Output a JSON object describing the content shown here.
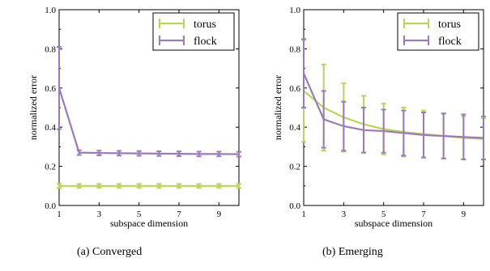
{
  "chart_data": [
    {
      "type": "line",
      "xlabel": "subspace dimension",
      "ylabel": "normalized error",
      "xlim": [
        1,
        10
      ],
      "ylim": [
        0.0,
        1.0
      ],
      "xticks": [
        "1",
        "3",
        "5",
        "7",
        "9"
      ],
      "yticks": [
        "0.0",
        "0.2",
        "0.4",
        "0.6",
        "0.8",
        "1.0"
      ],
      "legend_position": "top-right",
      "grid": false,
      "x": [
        1,
        2,
        3,
        4,
        5,
        6,
        7,
        8,
        9,
        10
      ],
      "series": [
        {
          "name": "torus",
          "color": "#b9d45a",
          "values": [
            0.1,
            0.1,
            0.1,
            0.1,
            0.1,
            0.1,
            0.1,
            0.1,
            0.1,
            0.1
          ],
          "err": [
            0.01,
            0.01,
            0.01,
            0.01,
            0.01,
            0.01,
            0.01,
            0.01,
            0.01,
            0.01
          ]
        },
        {
          "name": "flock",
          "color": "#9b7ab8",
          "values": [
            0.6,
            0.27,
            0.268,
            0.267,
            0.266,
            0.265,
            0.264,
            0.263,
            0.263,
            0.262
          ],
          "err": [
            0.21,
            0.012,
            0.012,
            0.012,
            0.012,
            0.012,
            0.012,
            0.012,
            0.012,
            0.012
          ]
        }
      ],
      "caption": "(a)  Converged"
    },
    {
      "type": "line",
      "xlabel": "subspace dimension",
      "ylabel": "normalized error",
      "xlim": [
        1,
        10
      ],
      "ylim": [
        0.0,
        1.0
      ],
      "xticks": [
        "1",
        "3",
        "5",
        "7",
        "9"
      ],
      "yticks": [
        "0.0",
        "0.2",
        "0.4",
        "0.6",
        "0.8",
        "1.0"
      ],
      "legend_position": "top-right",
      "grid": false,
      "x": [
        1,
        2,
        3,
        4,
        5,
        6,
        7,
        8,
        9,
        10
      ],
      "series": [
        {
          "name": "torus",
          "color": "#b9d45a",
          "values": [
            0.585,
            0.5,
            0.45,
            0.415,
            0.39,
            0.375,
            0.365,
            0.355,
            0.345,
            0.34
          ],
          "err": [
            0.26,
            0.22,
            0.175,
            0.145,
            0.13,
            0.125,
            0.12,
            0.115,
            0.11,
            0.105
          ]
        },
        {
          "name": "flock",
          "color": "#9b7ab8",
          "values": [
            0.675,
            0.44,
            0.405,
            0.385,
            0.38,
            0.37,
            0.36,
            0.355,
            0.35,
            0.345
          ],
          "err": [
            0.175,
            0.145,
            0.125,
            0.115,
            0.11,
            0.115,
            0.115,
            0.115,
            0.115,
            0.11
          ]
        }
      ],
      "caption": "(b)  Emerging"
    }
  ]
}
